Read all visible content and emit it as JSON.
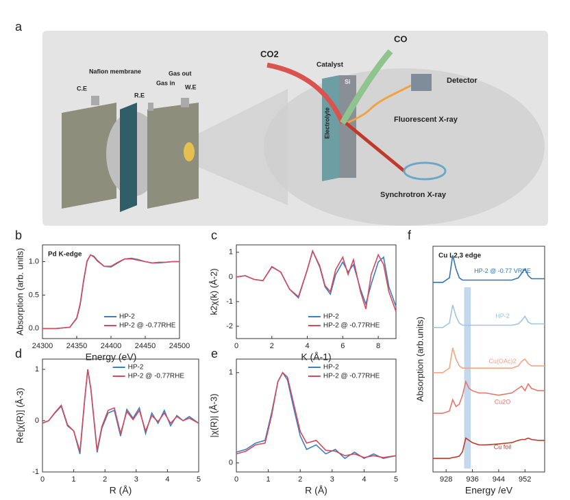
{
  "panel_labels": [
    "a",
    "b",
    "c",
    "d",
    "e",
    "f"
  ],
  "diagram": {
    "labels": [
      "C.E",
      "Nafion membrane",
      "R.E",
      "Gas in",
      "Gas out",
      "W.E",
      "CO2",
      "CO",
      "Catalyst",
      "Si",
      "Electrolyte",
      "Detector",
      "Fluorescent X-ray",
      "Synchrotron X-ray"
    ]
  },
  "chart_data": [
    {
      "type": "line",
      "annotation": "Pd K-edge",
      "xlabel": "Energy (eV)",
      "ylabel": "Absorption (arb. units)",
      "x": [
        24300,
        24320,
        24340,
        24350,
        24355,
        24360,
        24365,
        24370,
        24375,
        24380,
        24390,
        24400,
        24410,
        24420,
        24430,
        24440,
        24450,
        24460,
        24470,
        24480,
        24490,
        24500
      ],
      "series": [
        {
          "name": "HP-2",
          "color": "#3a7fc1",
          "values": [
            0,
            0,
            0.02,
            0.15,
            0.35,
            0.7,
            1.0,
            1.1,
            1.08,
            1.02,
            0.93,
            0.92,
            0.98,
            1.04,
            1.05,
            1.03,
            1.0,
            0.98,
            0.98,
            0.99,
            1.0,
            1.0
          ]
        },
        {
          "name": "HP-2 @ -0.77RHE",
          "color": "#d9475a",
          "values": [
            0,
            0,
            0.02,
            0.16,
            0.37,
            0.72,
            1.01,
            1.1,
            1.07,
            1.01,
            0.93,
            0.93,
            0.99,
            1.04,
            1.04,
            1.02,
            1.0,
            0.98,
            0.99,
            0.99,
            1.0,
            1.0
          ]
        }
      ],
      "xlim": [
        24300,
        24500
      ],
      "xticks": [
        24300,
        24350,
        24400,
        24450,
        24500
      ],
      "ylim": [
        -0.15,
        1.25
      ],
      "yticks": [
        {
          "value": 0,
          "label": "0.0"
        },
        {
          "value": 0.5,
          "label": "0.5"
        },
        {
          "value": 1,
          "label": "1.0"
        }
      ],
      "legend": "lower right"
    },
    {
      "type": "line",
      "xlabel": "K (Å-1)",
      "ylabel": "k2χ(k) (Å-2)",
      "x": [
        0,
        0.5,
        1,
        1.5,
        2,
        2.5,
        3,
        3.5,
        4,
        4.3,
        4.7,
        5,
        5.3,
        5.6,
        6,
        6.3,
        6.6,
        7,
        7.3,
        7.6,
        8,
        8.3,
        8.6,
        9
      ],
      "series": [
        {
          "name": "HP-2",
          "color": "#3a7fc1",
          "values": [
            0,
            0.05,
            -0.1,
            -0.15,
            0.4,
            0.2,
            -0.5,
            -0.85,
            0.3,
            1.05,
            0.4,
            -0.4,
            -0.7,
            0.1,
            0.6,
            0.2,
            0.5,
            -0.5,
            -1.1,
            -0.3,
            0.6,
            0.8,
            -0.4,
            -1.2
          ]
        },
        {
          "name": "HP-2 @ -0.77RHE",
          "color": "#d9475a",
          "values": [
            0,
            0.05,
            -0.1,
            -0.15,
            0.42,
            0.2,
            -0.5,
            -0.8,
            0.3,
            1.05,
            0.45,
            -0.35,
            -0.6,
            0.3,
            0.8,
            0.1,
            0.7,
            -0.6,
            -1.3,
            0.1,
            0.9,
            0.5,
            -0.6,
            -1.4
          ]
        }
      ],
      "xlim": [
        0,
        9
      ],
      "xticks": [
        0,
        2,
        4,
        6,
        8
      ],
      "ylim": [
        -2.5,
        1.3
      ],
      "yticks": [
        -2,
        -1,
        0,
        1
      ],
      "legend": "lower right"
    },
    {
      "type": "line",
      "xlabel": "R (Å)",
      "ylabel": "Re[χ(R)] (Å-3)",
      "x": [
        0,
        0.2,
        0.4,
        0.6,
        0.8,
        1.0,
        1.2,
        1.35,
        1.45,
        1.55,
        1.75,
        1.9,
        2.1,
        2.3,
        2.5,
        2.7,
        2.9,
        3.1,
        3.3,
        3.5,
        3.7,
        3.9,
        4.1,
        4.3,
        4.5,
        4.7,
        5
      ],
      "series": [
        {
          "name": "HP-2",
          "color": "#3a7fc1",
          "values": [
            -0.05,
            0,
            0.15,
            0.28,
            -0.1,
            -0.2,
            -0.65,
            0.4,
            1.0,
            0.6,
            -0.62,
            -0.15,
            0.15,
            0.2,
            -0.3,
            0.22,
            0.05,
            0.25,
            -0.25,
            0.15,
            -0.05,
            0.2,
            -0.1,
            0.1,
            0,
            0.08,
            -0.05
          ]
        },
        {
          "name": "HP-2 @ -0.77RHE",
          "color": "#d9475a",
          "values": [
            -0.05,
            0,
            0.16,
            0.3,
            -0.08,
            -0.2,
            -0.6,
            0.42,
            1.0,
            0.62,
            -0.58,
            -0.12,
            0.2,
            0.25,
            -0.25,
            0.18,
            0.02,
            0.2,
            -0.2,
            0.1,
            -0.02,
            0.15,
            -0.05,
            0.08,
            0,
            0.05,
            -0.05
          ]
        }
      ],
      "xlim": [
        0,
        5
      ],
      "xticks": [
        0,
        1,
        2,
        3,
        4,
        5
      ],
      "ylim": [
        -1,
        1.2
      ],
      "yticks": [
        -1,
        0,
        1
      ],
      "legend": "upper right"
    },
    {
      "type": "line",
      "xlabel": "R (Å)",
      "ylabel": "|χ(R)| (Å-3)",
      "x": [
        0,
        0.3,
        0.6,
        0.9,
        1.1,
        1.3,
        1.45,
        1.6,
        1.8,
        2.0,
        2.2,
        2.5,
        2.8,
        3.1,
        3.4,
        3.7,
        4.0,
        4.3,
        4.6,
        5
      ],
      "series": [
        {
          "name": "HP-2",
          "color": "#3a7fc1",
          "values": [
            0.12,
            0.15,
            0.22,
            0.25,
            0.55,
            0.9,
            1.0,
            0.92,
            0.6,
            0.3,
            0.15,
            0.2,
            0.1,
            0.15,
            0.05,
            0.12,
            0.05,
            0.1,
            0.05,
            0.08
          ]
        },
        {
          "name": "HP-2 @ -0.77RHE",
          "color": "#d9475a",
          "values": [
            0.1,
            0.13,
            0.2,
            0.22,
            0.52,
            0.9,
            1.0,
            0.95,
            0.65,
            0.35,
            0.22,
            0.25,
            0.14,
            0.13,
            0.08,
            0.1,
            0.06,
            0.08,
            0.06,
            0.08
          ]
        }
      ],
      "xlim": [
        0,
        5
      ],
      "xticks": [
        0,
        1,
        2,
        3,
        4,
        5
      ],
      "ylim": [
        -0.1,
        1.15
      ],
      "yticks": [
        0,
        1
      ],
      "legend": "upper right"
    },
    {
      "type": "line",
      "annotation": "Cu L2,3 edge",
      "xlabel": "Energy /eV",
      "ylabel": "Absorption (arb.units)",
      "x": [
        924,
        927,
        929,
        930,
        931,
        932,
        933,
        934,
        935,
        936,
        938,
        940,
        944,
        948,
        950,
        951,
        952,
        953,
        954,
        956,
        958
      ],
      "series": [
        {
          "name": "HP-2 @ -0.77 VRHE",
          "color": "#2f75b5",
          "values": [
            4.2,
            4.2,
            4.3,
            4.8,
            4.5,
            4.3,
            4.25,
            4.25,
            4.25,
            4.25,
            4.25,
            4.25,
            4.25,
            4.25,
            4.3,
            4.4,
            4.5,
            4.35,
            4.28,
            4.28,
            4.28
          ]
        },
        {
          "name": "HP-2",
          "color": "#9fc5e0",
          "values": [
            3.2,
            3.2,
            3.3,
            3.7,
            3.45,
            3.3,
            3.25,
            3.25,
            3.25,
            3.25,
            3.25,
            3.25,
            3.25,
            3.25,
            3.28,
            3.35,
            3.45,
            3.32,
            3.28,
            3.28,
            3.28
          ]
        },
        {
          "name": "Cu(OAc)2",
          "color": "#f4a582",
          "values": [
            2.2,
            2.2,
            2.3,
            2.75,
            2.5,
            2.35,
            2.3,
            2.3,
            2.3,
            2.3,
            2.3,
            2.3,
            2.3,
            2.3,
            2.35,
            2.45,
            2.5,
            2.4,
            2.35,
            2.35,
            2.35
          ]
        },
        {
          "name": "Cu2O",
          "color": "#e8766b",
          "values": [
            1.3,
            1.3,
            1.35,
            1.6,
            1.45,
            1.5,
            1.7,
            2.0,
            1.85,
            1.8,
            1.75,
            1.75,
            1.7,
            1.75,
            1.85,
            1.9,
            1.8,
            1.95,
            1.85,
            1.8,
            1.8
          ]
        },
        {
          "name": "Cu foil",
          "color": "#c0392b",
          "values": [
            0.3,
            0.3,
            0.3,
            0.32,
            0.33,
            0.35,
            0.45,
            0.75,
            0.7,
            0.65,
            0.6,
            0.6,
            0.62,
            0.65,
            0.7,
            0.72,
            0.72,
            0.75,
            0.72,
            0.7,
            0.7
          ]
        }
      ],
      "xlim": [
        924,
        958
      ],
      "xticks": [
        928,
        936,
        944,
        952
      ],
      "ylim": [
        0,
        5
      ],
      "legend": "inline"
    }
  ]
}
